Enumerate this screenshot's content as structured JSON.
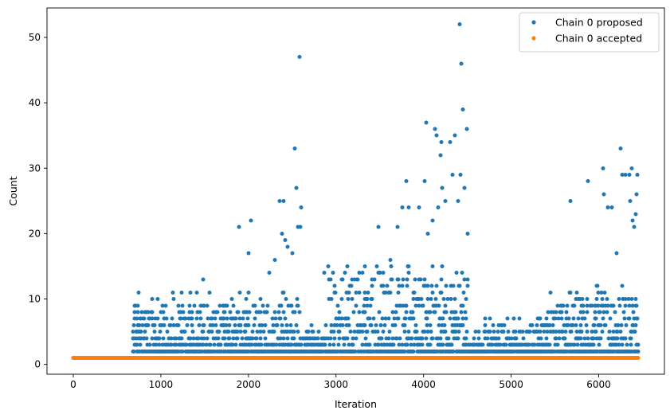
{
  "chart_data": {
    "type": "scatter",
    "xlabel": "Iteration",
    "ylabel": "Count",
    "xlim": [
      -300,
      6750
    ],
    "ylim": [
      -1.5,
      54.5
    ],
    "xticks": [
      0,
      1000,
      2000,
      3000,
      4000,
      5000,
      6000
    ],
    "yticks": [
      0,
      10,
      20,
      30,
      40,
      50
    ],
    "grid": false,
    "legend_position": "top-right",
    "n_iterations": 6450,
    "series": [
      {
        "name": "Chain 0 proposed",
        "color": "#1f77b4",
        "marker": "dot",
        "baseline": {
          "y": 1,
          "x_range": [
            0,
            680
          ]
        },
        "bands": [
          {
            "x_range": [
              680,
              2600
            ],
            "floor": 2,
            "peak": 9
          },
          {
            "x_range": [
              2600,
              2900
            ],
            "floor": 2,
            "peak": 4
          },
          {
            "x_range": [
              2900,
              4500
            ],
            "floor": 2,
            "peak": 13
          },
          {
            "x_range": [
              4500,
              4700
            ],
            "floor": 2,
            "peak": 3
          },
          {
            "x_range": [
              4700,
              5400
            ],
            "floor": 2,
            "peak": 5
          },
          {
            "x_range": [
              5400,
              6450
            ],
            "floor": 2,
            "peak": 10
          }
        ],
        "outliers": [
          {
            "x": 1480,
            "y": 13
          },
          {
            "x": 1890,
            "y": 21
          },
          {
            "x": 2000,
            "y": 17
          },
          {
            "x": 2030,
            "y": 22
          },
          {
            "x": 2240,
            "y": 14
          },
          {
            "x": 2300,
            "y": 16
          },
          {
            "x": 2360,
            "y": 25
          },
          {
            "x": 2380,
            "y": 20
          },
          {
            "x": 2400,
            "y": 25
          },
          {
            "x": 2420,
            "y": 19
          },
          {
            "x": 2450,
            "y": 18
          },
          {
            "x": 2500,
            "y": 17
          },
          {
            "x": 2530,
            "y": 33
          },
          {
            "x": 2550,
            "y": 27
          },
          {
            "x": 2570,
            "y": 21
          },
          {
            "x": 2580,
            "y": 47
          },
          {
            "x": 2590,
            "y": 21
          },
          {
            "x": 2600,
            "y": 24
          },
          {
            "x": 2870,
            "y": 14
          },
          {
            "x": 3100,
            "y": 14
          },
          {
            "x": 3300,
            "y": 14
          },
          {
            "x": 3480,
            "y": 21
          },
          {
            "x": 3620,
            "y": 16
          },
          {
            "x": 3700,
            "y": 21
          },
          {
            "x": 3760,
            "y": 24
          },
          {
            "x": 3800,
            "y": 28
          },
          {
            "x": 3830,
            "y": 24
          },
          {
            "x": 3950,
            "y": 24
          },
          {
            "x": 4010,
            "y": 28
          },
          {
            "x": 4030,
            "y": 37
          },
          {
            "x": 4050,
            "y": 20
          },
          {
            "x": 4100,
            "y": 22
          },
          {
            "x": 4130,
            "y": 36
          },
          {
            "x": 4150,
            "y": 35
          },
          {
            "x": 4170,
            "y": 24
          },
          {
            "x": 4190,
            "y": 32
          },
          {
            "x": 4200,
            "y": 34
          },
          {
            "x": 4210,
            "y": 27
          },
          {
            "x": 4250,
            "y": 25
          },
          {
            "x": 4300,
            "y": 34
          },
          {
            "x": 4330,
            "y": 29
          },
          {
            "x": 4360,
            "y": 35
          },
          {
            "x": 4390,
            "y": 25
          },
          {
            "x": 4410,
            "y": 52
          },
          {
            "x": 4420,
            "y": 29
          },
          {
            "x": 4430,
            "y": 46
          },
          {
            "x": 4450,
            "y": 39
          },
          {
            "x": 4470,
            "y": 27
          },
          {
            "x": 4490,
            "y": 36
          },
          {
            "x": 4500,
            "y": 20
          },
          {
            "x": 5680,
            "y": 25
          },
          {
            "x": 5880,
            "y": 28
          },
          {
            "x": 6050,
            "y": 30
          },
          {
            "x": 6060,
            "y": 26
          },
          {
            "x": 6100,
            "y": 24
          },
          {
            "x": 6150,
            "y": 24
          },
          {
            "x": 6200,
            "y": 17
          },
          {
            "x": 6250,
            "y": 33
          },
          {
            "x": 6270,
            "y": 29
          },
          {
            "x": 6300,
            "y": 29
          },
          {
            "x": 6350,
            "y": 29
          },
          {
            "x": 6360,
            "y": 25
          },
          {
            "x": 6380,
            "y": 30
          },
          {
            "x": 6390,
            "y": 22
          },
          {
            "x": 6400,
            "y": 21
          },
          {
            "x": 6420,
            "y": 23
          },
          {
            "x": 6430,
            "y": 26
          },
          {
            "x": 6440,
            "y": 29
          }
        ]
      },
      {
        "name": "Chain 0 accepted",
        "color": "#ff7f0e",
        "marker": "dot",
        "constant": {
          "y": 1,
          "x_range": [
            0,
            6450
          ]
        }
      }
    ]
  }
}
